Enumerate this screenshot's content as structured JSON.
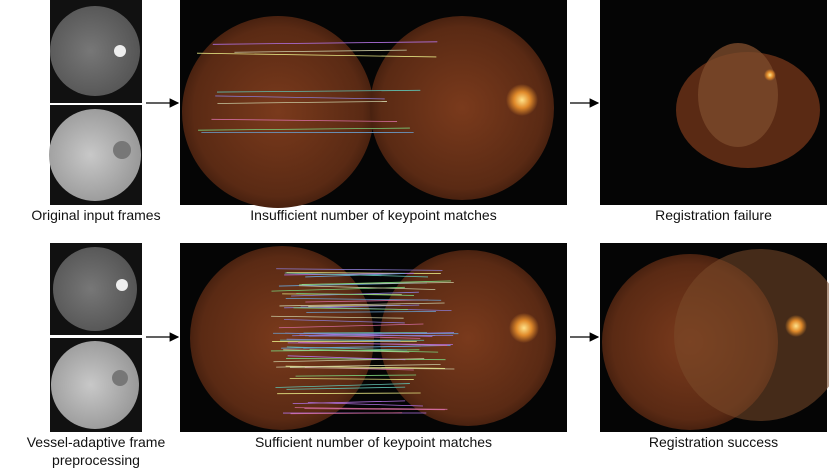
{
  "rows": [
    {
      "captions": [
        "Original input frames",
        "Insufficient number of keypoint matches",
        "Registration failure"
      ]
    },
    {
      "captions": [
        "Vessel-adaptive frame preprocessing",
        "Sufficient number of keypoint matches",
        "Registration success"
      ]
    }
  ]
}
